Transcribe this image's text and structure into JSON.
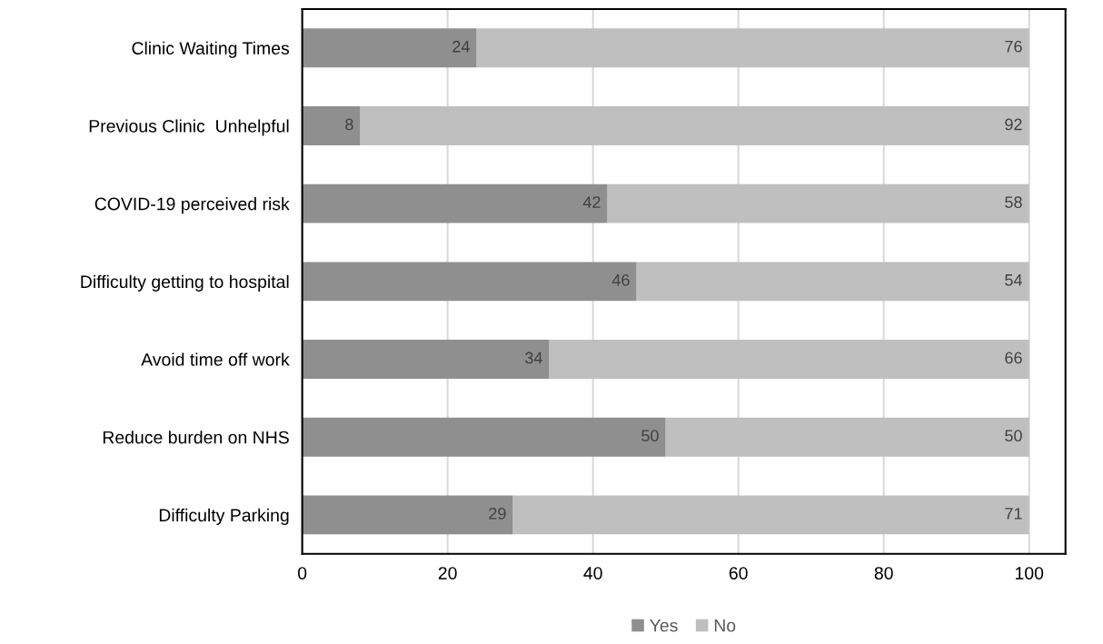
{
  "chart_data": {
    "type": "bar",
    "orientation": "horizontal",
    "stacked": true,
    "categories": [
      "Clinic Waiting Times",
      "Previous Clinic  Unhelpful",
      "COVID-19 perceived risk",
      "Difficulty getting to hospital",
      "Avoid time off work",
      "Reduce burden on NHS",
      "Difficulty Parking"
    ],
    "series": [
      {
        "name": "Yes",
        "color": "#8f8f8f",
        "values": [
          24,
          8,
          42,
          46,
          34,
          50,
          29
        ]
      },
      {
        "name": "No",
        "color": "#bfbfbf",
        "values": [
          76,
          92,
          58,
          54,
          66,
          50,
          71
        ]
      }
    ],
    "xlim": [
      0,
      105
    ],
    "xticks": [
      0,
      20,
      40,
      60,
      80,
      100
    ],
    "grid": "x",
    "legend": "bottom",
    "data_labels": true
  }
}
